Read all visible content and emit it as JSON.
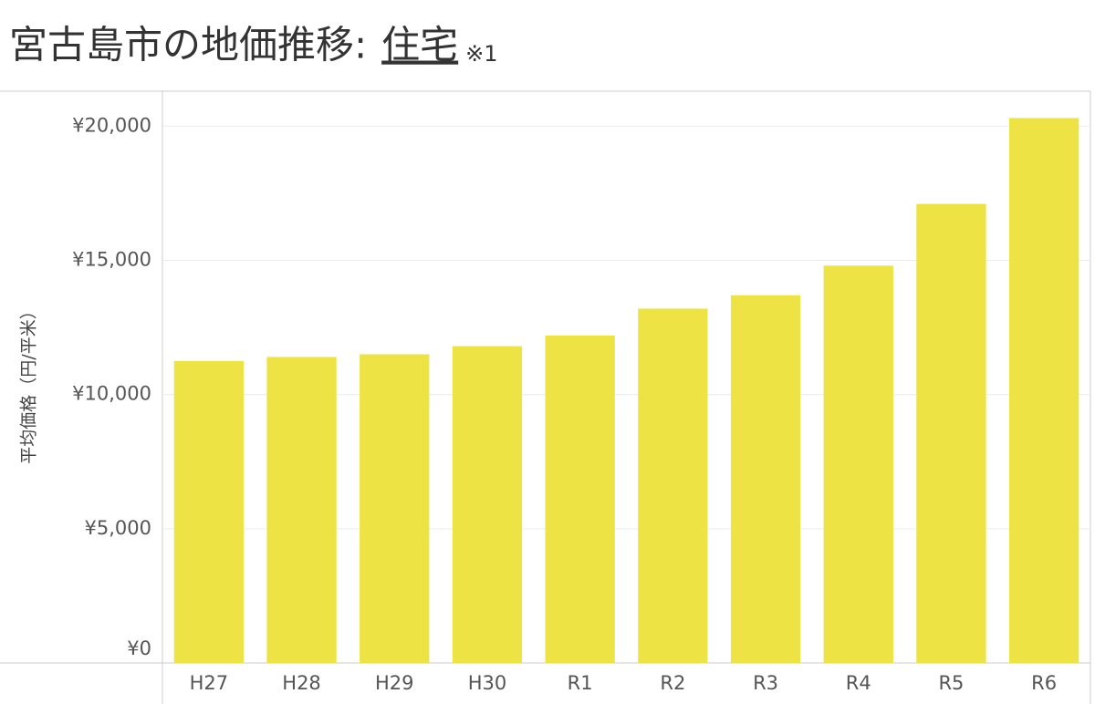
{
  "chart_data": {
    "type": "bar",
    "title": "宮古島市の地価推移:",
    "title_link": "住宅",
    "title_note": "※1",
    "y_label": "平均価格（円/平米）",
    "categories": [
      "H27",
      "H28",
      "H29",
      "H30",
      "R1",
      "R2",
      "R3",
      "R4",
      "R5",
      "R6"
    ],
    "values": [
      11250,
      11400,
      11500,
      11800,
      12200,
      13200,
      13700,
      14800,
      17100,
      20300
    ],
    "color": "#ede345",
    "ylim": [
      0,
      21300
    ],
    "yticks": [
      {
        "value": 0,
        "label": "¥0"
      },
      {
        "value": 5000,
        "label": "¥5,000"
      },
      {
        "value": 10000,
        "label": "¥10,000"
      },
      {
        "value": 15000,
        "label": "¥15,000"
      },
      {
        "value": 20000,
        "label": "¥20,000"
      }
    ],
    "grid": true
  }
}
